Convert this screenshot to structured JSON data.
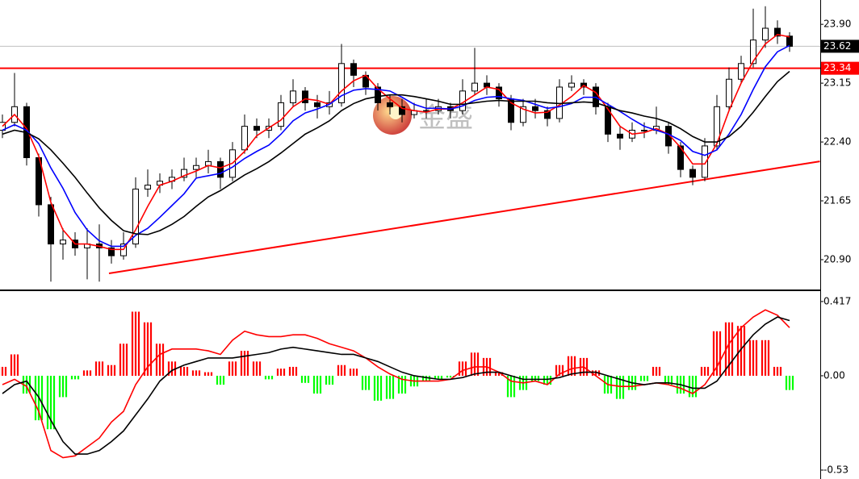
{
  "watermark": "金盛",
  "chart_data": [
    {
      "type": "candlestick",
      "open": [
        22.55,
        22.65,
        22.85,
        22.2,
        21.6,
        21.1,
        21.15,
        21.05,
        21.1,
        21.05,
        20.95,
        21.1,
        21.8,
        21.85,
        21.9,
        21.95,
        22.05,
        22.1,
        22.15,
        21.95,
        22.3,
        22.6,
        22.55,
        22.6,
        22.9,
        23.05,
        22.9,
        22.85,
        22.9,
        23.4,
        23.25,
        23.1,
        22.9,
        22.85,
        22.75,
        22.8,
        22.8,
        22.85,
        22.8,
        23.05,
        23.15,
        23.1,
        22.95,
        22.65,
        22.85,
        22.8,
        22.7,
        23.1,
        23.15,
        23.1,
        22.85,
        22.5,
        22.45,
        22.55,
        22.55,
        22.6,
        22.35,
        22.05,
        21.95,
        22.35,
        22.85,
        23.2,
        23.4,
        23.7,
        23.85,
        23.75
      ],
      "high": [
        22.75,
        23.28,
        22.9,
        22.25,
        21.7,
        21.3,
        21.25,
        21.3,
        21.35,
        21.15,
        21.25,
        21.95,
        22.05,
        22.0,
        22.05,
        22.2,
        22.2,
        22.3,
        22.2,
        22.4,
        22.75,
        22.7,
        22.7,
        23.0,
        23.2,
        23.1,
        23.0,
        23.05,
        23.65,
        23.45,
        23.3,
        23.15,
        23.0,
        22.95,
        22.9,
        22.95,
        22.95,
        22.9,
        23.2,
        23.6,
        23.25,
        23.15,
        23.0,
        22.95,
        22.95,
        22.85,
        23.2,
        23.25,
        23.2,
        23.15,
        22.9,
        22.6,
        22.65,
        22.65,
        22.85,
        22.65,
        22.4,
        22.1,
        22.45,
        23.0,
        23.35,
        23.5,
        24.1,
        24.13,
        23.95,
        23.8
      ],
      "low": [
        22.45,
        22.6,
        22.1,
        21.45,
        20.62,
        20.9,
        20.95,
        20.65,
        20.62,
        20.85,
        20.9,
        21.05,
        21.7,
        21.75,
        21.8,
        21.9,
        21.95,
        22.0,
        21.8,
        21.9,
        22.25,
        22.45,
        22.45,
        22.55,
        22.85,
        22.8,
        22.7,
        22.75,
        22.85,
        23.1,
        23.0,
        22.8,
        22.75,
        22.65,
        22.7,
        22.7,
        22.75,
        22.7,
        22.75,
        23.0,
        23.0,
        22.85,
        22.55,
        22.6,
        22.7,
        22.6,
        22.65,
        23.05,
        23.0,
        22.75,
        22.4,
        22.3,
        22.4,
        22.45,
        22.5,
        22.25,
        21.95,
        21.85,
        21.9,
        22.3,
        22.8,
        23.15,
        23.35,
        23.6,
        23.65,
        23.55
      ],
      "close": [
        22.65,
        22.85,
        22.2,
        21.6,
        21.1,
        21.15,
        21.05,
        21.1,
        21.05,
        20.95,
        21.1,
        21.8,
        21.85,
        21.9,
        21.95,
        22.05,
        22.1,
        22.15,
        21.95,
        22.3,
        22.6,
        22.55,
        22.6,
        22.9,
        23.05,
        22.9,
        22.85,
        22.9,
        23.4,
        23.25,
        23.1,
        22.9,
        22.85,
        22.75,
        22.8,
        22.8,
        22.85,
        22.8,
        23.05,
        23.15,
        23.1,
        22.95,
        22.65,
        22.85,
        22.8,
        22.7,
        23.1,
        23.15,
        23.1,
        22.85,
        22.5,
        22.45,
        22.55,
        22.55,
        22.6,
        22.35,
        22.05,
        21.95,
        22.35,
        22.85,
        23.2,
        23.4,
        23.7,
        23.85,
        23.75,
        23.62
      ],
      "up_color": "#ffffff",
      "down_color": "#000000",
      "lines": [
        {
          "color": "#ff0000",
          "values": [
            22.6,
            22.75,
            22.57,
            22.22,
            21.63,
            21.28,
            21.1,
            21.1,
            21.07,
            21.03,
            21.03,
            21.28,
            21.58,
            21.85,
            21.9,
            21.97,
            22.03,
            22.1,
            22.07,
            22.13,
            22.28,
            22.48,
            22.58,
            22.68,
            22.85,
            22.95,
            22.93,
            22.88,
            23.05,
            23.18,
            23.25,
            23.08,
            22.95,
            22.83,
            22.8,
            22.78,
            22.82,
            22.82,
            22.9,
            23.0,
            23.1,
            23.07,
            22.9,
            22.82,
            22.77,
            22.78,
            22.87,
            22.98,
            23.12,
            23.03,
            22.82,
            22.6,
            22.5,
            22.52,
            22.57,
            22.5,
            22.33,
            22.12,
            22.12,
            22.38,
            22.8,
            23.15,
            23.43,
            23.65,
            23.77,
            23.74
          ]
        },
        {
          "color": "#0000ff",
          "values": [
            22.55,
            22.62,
            22.55,
            22.38,
            22.07,
            21.81,
            21.5,
            21.28,
            21.14,
            21.07,
            21.07,
            21.21,
            21.3,
            21.44,
            21.59,
            21.74,
            21.94,
            21.97,
            22.0,
            22.08,
            22.19,
            22.28,
            22.36,
            22.5,
            22.67,
            22.77,
            22.82,
            22.88,
            22.99,
            23.06,
            23.08,
            23.07,
            23.05,
            22.97,
            22.88,
            22.83,
            22.83,
            22.82,
            22.86,
            22.93,
            22.97,
            22.98,
            22.95,
            22.93,
            22.88,
            22.83,
            22.85,
            22.89,
            22.97,
            22.97,
            22.88,
            22.79,
            22.69,
            22.6,
            22.55,
            22.5,
            22.42,
            22.28,
            22.23,
            22.3,
            22.5,
            22.75,
            23.07,
            23.36,
            23.55,
            23.63
          ]
        },
        {
          "color": "#000000",
          "values": [
            22.5,
            22.55,
            22.52,
            22.44,
            22.3,
            22.13,
            21.95,
            21.75,
            21.56,
            21.4,
            21.27,
            21.23,
            21.22,
            21.27,
            21.35,
            21.45,
            21.58,
            21.7,
            21.78,
            21.88,
            21.98,
            22.06,
            22.15,
            22.26,
            22.38,
            22.5,
            22.58,
            22.67,
            22.8,
            22.89,
            22.95,
            22.98,
            23.0,
            23.0,
            22.98,
            22.95,
            22.92,
            22.88,
            22.88,
            22.9,
            22.92,
            22.93,
            22.92,
            22.92,
            22.92,
            22.9,
            22.89,
            22.9,
            22.91,
            22.9,
            22.85,
            22.8,
            22.77,
            22.73,
            22.7,
            22.65,
            22.57,
            22.47,
            22.4,
            22.4,
            22.47,
            22.6,
            22.78,
            22.98,
            23.17,
            23.3
          ]
        }
      ],
      "hlines": [
        {
          "value": 23.62,
          "color": "#c0c0c0",
          "label_color": "#000000"
        },
        {
          "value": 23.34,
          "color": "#ff0000",
          "label_color": "#ff0000"
        }
      ],
      "trendline": {
        "x": [
          8.8,
          67.5
        ],
        "y": [
          20.725,
          22.153
        ],
        "color": "#ff0000"
      },
      "ylim": [
        20.53,
        24.21
      ],
      "yticks": [
        {
          "value": 23.9,
          "label": "23.90"
        },
        23.15,
        {
          "value": 22.4,
          "label": "22.40"
        },
        21.65,
        {
          "value": 20.9,
          "label": "20.90"
        }
      ]
    },
    {
      "type": "macd",
      "values": [
        0.05,
        0.12,
        -0.1,
        -0.25,
        -0.3,
        -0.12,
        -0.02,
        0.03,
        0.08,
        0.06,
        0.18,
        0.36,
        0.3,
        0.18,
        0.08,
        0.05,
        0.03,
        0.02,
        -0.05,
        0.08,
        0.14,
        0.08,
        -0.02,
        0.04,
        0.05,
        -0.04,
        -0.1,
        -0.05,
        0.06,
        0.04,
        -0.08,
        -0.14,
        -0.13,
        -0.1,
        -0.06,
        -0.03,
        -0.02,
        -0.01,
        0.08,
        0.13,
        0.1,
        0.02,
        -0.12,
        -0.08,
        -0.03,
        -0.05,
        0.06,
        0.11,
        0.1,
        0.03,
        -0.1,
        -0.13,
        -0.08,
        -0.03,
        0.05,
        -0.05,
        -0.1,
        -0.12,
        0.05,
        0.25,
        0.3,
        0.28,
        0.2,
        0.2,
        0.05,
        -0.08
      ],
      "up_color": "#ff0000",
      "down_color": "#00ff00",
      "lines": [
        {
          "color": "#ff0000",
          "values": [
            -0.05,
            -0.02,
            -0.06,
            -0.2,
            -0.42,
            -0.46,
            -0.45,
            -0.4,
            -0.35,
            -0.26,
            -0.2,
            -0.05,
            0.05,
            0.12,
            0.15,
            0.15,
            0.15,
            0.14,
            0.12,
            0.2,
            0.25,
            0.23,
            0.22,
            0.22,
            0.23,
            0.23,
            0.21,
            0.18,
            0.16,
            0.14,
            0.1,
            0.05,
            0.01,
            -0.02,
            -0.03,
            -0.03,
            -0.03,
            -0.02,
            0.03,
            0.05,
            0.05,
            0.02,
            -0.03,
            -0.04,
            -0.03,
            -0.05,
            0.01,
            0.04,
            0.05,
            0.0,
            -0.05,
            -0.06,
            -0.06,
            -0.05,
            -0.04,
            -0.05,
            -0.07,
            -0.1,
            -0.05,
            0.05,
            0.18,
            0.27,
            0.33,
            0.37,
            0.34,
            0.27
          ]
        },
        {
          "color": "#000000",
          "values": [
            -0.1,
            -0.05,
            -0.03,
            -0.12,
            -0.25,
            -0.37,
            -0.44,
            -0.44,
            -0.42,
            -0.37,
            -0.31,
            -0.22,
            -0.13,
            -0.03,
            0.03,
            0.06,
            0.08,
            0.1,
            0.1,
            0.1,
            0.11,
            0.12,
            0.13,
            0.15,
            0.16,
            0.15,
            0.14,
            0.13,
            0.12,
            0.12,
            0.1,
            0.08,
            0.05,
            0.02,
            0.0,
            -0.01,
            -0.02,
            -0.02,
            -0.01,
            0.01,
            0.02,
            0.02,
            0.0,
            -0.02,
            -0.02,
            -0.02,
            -0.01,
            0.01,
            0.02,
            0.02,
            0.0,
            -0.02,
            -0.04,
            -0.05,
            -0.04,
            -0.04,
            -0.05,
            -0.07,
            -0.07,
            -0.03,
            0.06,
            0.15,
            0.23,
            0.29,
            0.33,
            0.31
          ]
        }
      ],
      "ylim": [
        -0.58,
        0.471
      ],
      "yticks": [
        0.417,
        {
          "value": 0,
          "label": "0.00"
        },
        -0.53
      ]
    }
  ]
}
